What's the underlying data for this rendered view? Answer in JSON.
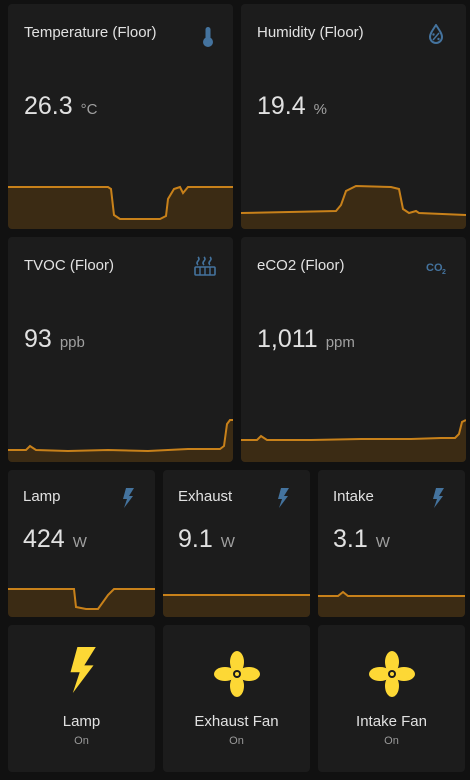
{
  "colors": {
    "accent": "#44739e",
    "graph": "#c8811a",
    "icon_on": "#fdd835"
  },
  "cards": [
    {
      "title": "Temperature (Floor)",
      "value": "26.3",
      "unit": "°C",
      "icon": "thermometer-icon"
    },
    {
      "title": "Humidity (Floor)",
      "value": "19.4",
      "unit": "%",
      "icon": "water-percent-icon"
    },
    {
      "title": "TVOC (Floor)",
      "value": "93",
      "unit": "ppb",
      "icon": "radiator-icon"
    },
    {
      "title": "eCO2 (Floor)",
      "value": "1,011",
      "unit": "ppm",
      "icon": "co2-icon"
    }
  ],
  "power": [
    {
      "title": "Lamp",
      "value": "424",
      "unit": "W",
      "icon": "flash-icon"
    },
    {
      "title": "Exhaust",
      "value": "9.1",
      "unit": "W",
      "icon": "flash-icon"
    },
    {
      "title": "Intake",
      "value": "3.1",
      "unit": "W",
      "icon": "flash-icon"
    }
  ],
  "buttons": [
    {
      "name": "Lamp",
      "state": "On",
      "icon": "flash-icon"
    },
    {
      "name": "Exhaust Fan",
      "state": "On",
      "icon": "fan-icon"
    },
    {
      "name": "Intake Fan",
      "state": "On",
      "icon": "fan-icon"
    }
  ]
}
